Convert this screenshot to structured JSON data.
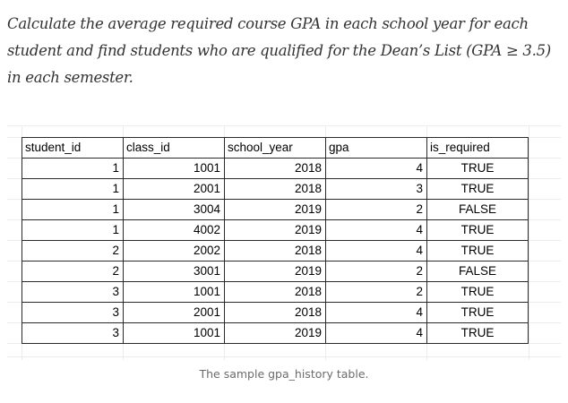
{
  "intro": {
    "text": "Calculate the average required course GPA in each school year for each student and find students who are qualified for the Dean’s List (GPA ≥ 3.5) in each semester."
  },
  "table": {
    "headers": [
      "student_id",
      "class_id",
      "school_year",
      "gpa",
      "is_required"
    ],
    "rows": [
      [
        "1",
        "1001",
        "2018",
        "4",
        "TRUE"
      ],
      [
        "1",
        "2001",
        "2018",
        "3",
        "TRUE"
      ],
      [
        "1",
        "3004",
        "2019",
        "2",
        "FALSE"
      ],
      [
        "1",
        "4002",
        "2019",
        "4",
        "TRUE"
      ],
      [
        "2",
        "2002",
        "2018",
        "4",
        "TRUE"
      ],
      [
        "2",
        "3001",
        "2019",
        "2",
        "FALSE"
      ],
      [
        "3",
        "1001",
        "2018",
        "2",
        "TRUE"
      ],
      [
        "3",
        "2001",
        "2018",
        "4",
        "TRUE"
      ],
      [
        "3",
        "1001",
        "2019",
        "4",
        "TRUE"
      ]
    ]
  },
  "caption": {
    "text": "The sample gpa_history table."
  }
}
